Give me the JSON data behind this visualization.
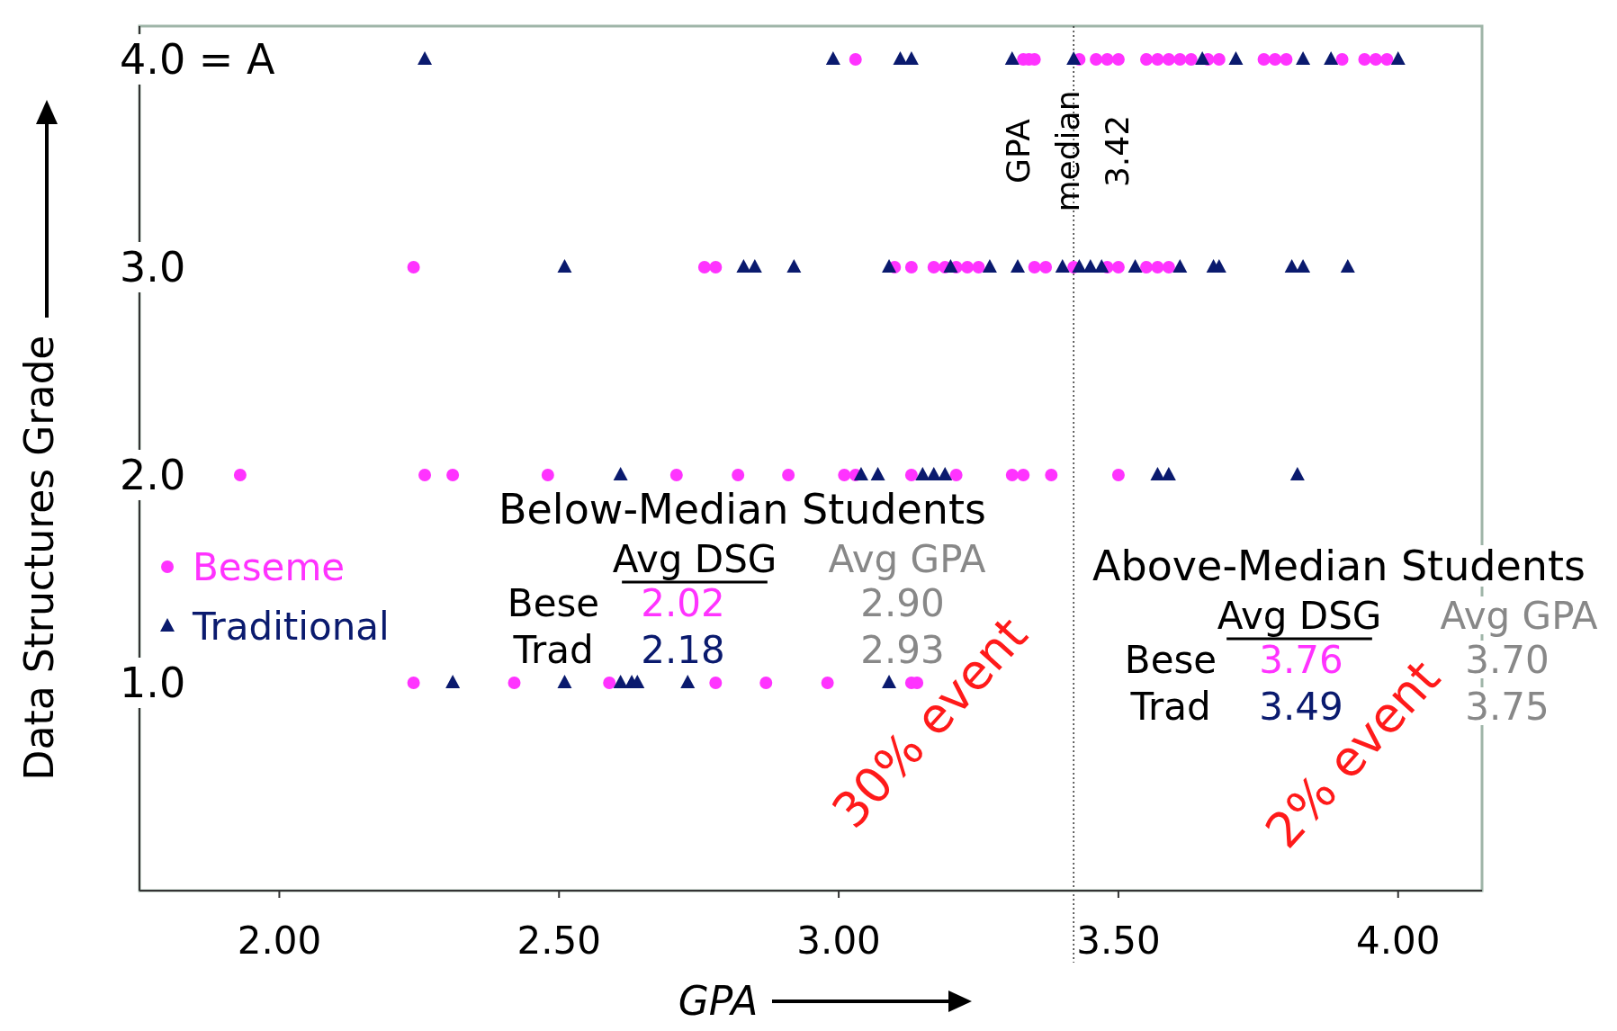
{
  "chart_data": {
    "type": "scatter",
    "xlabel": "GPA",
    "ylabel": "Data Structures Grade",
    "xlim": [
      1.75,
      4.15
    ],
    "ylim": [
      0,
      4.16
    ],
    "xticks": [
      {
        "value": 2,
        "label": "2.00"
      },
      {
        "value": 2.5,
        "label": "2.50"
      },
      {
        "value": 3,
        "label": "3.00"
      },
      {
        "value": 3.5,
        "label": "3.50"
      },
      {
        "value": 4,
        "label": "4.00"
      }
    ],
    "yticks": [
      {
        "value": 1,
        "label": "1.0"
      },
      {
        "value": 2,
        "label": "2.0"
      },
      {
        "value": 3,
        "label": "3.0"
      },
      {
        "value": 4,
        "label": "4.0 = A"
      }
    ],
    "grid": false,
    "legend": "left",
    "series": [
      {
        "name": "Beseme",
        "color": "#ff33ff",
        "marker": "circle",
        "x": [
          3.03,
          3.33,
          3.34,
          3.35,
          3.43,
          3.46,
          3.48,
          3.5,
          3.55,
          3.57,
          3.59,
          3.61,
          3.63,
          3.66,
          3.68,
          3.76,
          3.78,
          3.8,
          3.9,
          3.94,
          3.96,
          3.98,
          2.24,
          2.76,
          2.78,
          3.1,
          3.13,
          3.17,
          3.19,
          3.21,
          3.23,
          3.25,
          3.35,
          3.37,
          3.42,
          3.48,
          3.5,
          3.55,
          3.57,
          3.59,
          1.93,
          2.26,
          2.31,
          2.48,
          2.71,
          2.82,
          2.91,
          3.01,
          3.03,
          3.13,
          3.21,
          3.31,
          3.33,
          3.38,
          3.5,
          2.24,
          2.42,
          2.59,
          2.78,
          2.87,
          2.98,
          3.13,
          3.14
        ],
        "values": [
          4,
          4,
          4,
          4,
          4,
          4,
          4,
          4,
          4,
          4,
          4,
          4,
          4,
          4,
          4,
          4,
          4,
          4,
          4,
          4,
          4,
          4,
          3,
          3,
          3,
          3,
          3,
          3,
          3,
          3,
          3,
          3,
          3,
          3,
          3,
          3,
          3,
          3,
          3,
          3,
          2,
          2,
          2,
          2,
          2,
          2,
          2,
          2,
          2,
          2,
          2,
          2,
          2,
          2,
          2,
          1,
          1,
          1,
          1,
          1,
          1,
          1,
          1
        ]
      },
      {
        "name": "Traditional",
        "color": "#0a1a6e",
        "marker": "triangle",
        "x": [
          2.26,
          2.99,
          3.11,
          3.13,
          3.31,
          3.42,
          3.65,
          3.71,
          3.83,
          3.88,
          4.0,
          2.51,
          2.83,
          2.85,
          2.92,
          3.09,
          3.2,
          3.27,
          3.32,
          3.4,
          3.43,
          3.45,
          3.47,
          3.53,
          3.61,
          3.67,
          3.68,
          3.81,
          3.83,
          3.91,
          2.61,
          3.04,
          3.07,
          3.15,
          3.17,
          3.19,
          3.57,
          3.59,
          3.82,
          2.31,
          2.51,
          2.61,
          2.63,
          2.64,
          2.73,
          3.09
        ],
        "values": [
          4,
          4,
          4,
          4,
          4,
          4,
          4,
          4,
          4,
          4,
          4,
          3,
          3,
          3,
          3,
          3,
          3,
          3,
          3,
          3,
          3,
          3,
          3,
          3,
          3,
          3,
          3,
          3,
          3,
          3,
          2,
          2,
          2,
          2,
          2,
          2,
          2,
          2,
          2,
          1,
          1,
          1,
          1,
          1,
          1,
          1
        ]
      }
    ],
    "ref_lines": [
      {
        "axis": "x",
        "value": 3.42,
        "label": "GPA median 3.42",
        "line_style": "dotted"
      }
    ],
    "annotations": [
      "Below-Median Students",
      "Avg DSG",
      "Avg GPA",
      "Bese",
      "2.02",
      "2.90",
      "Trad",
      "2.18",
      "2.93",
      "Above-Median Students",
      "Avg DSG",
      "Avg GPA",
      "Bese",
      "3.76",
      "3.70",
      "Trad",
      "3.49",
      "3.75",
      "30% event",
      "2% event"
    ]
  }
}
